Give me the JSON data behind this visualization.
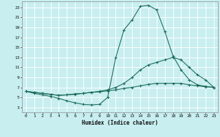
{
  "title": "",
  "xlabel": "Humidex (Indice chaleur)",
  "bg_color": "#c8eef0",
  "grid_color": "#ffffff",
  "line_color": "#1a6b5a",
  "xlim": [
    -0.5,
    23.5
  ],
  "ylim": [
    2.0,
    24.2
  ],
  "xticks": [
    0,
    1,
    2,
    3,
    4,
    5,
    6,
    7,
    8,
    9,
    10,
    11,
    12,
    13,
    14,
    15,
    16,
    17,
    18,
    19,
    20,
    21,
    22,
    23
  ],
  "yticks": [
    3,
    5,
    7,
    9,
    11,
    13,
    15,
    17,
    19,
    21,
    23
  ],
  "curve1_x": [
    0,
    1,
    2,
    3,
    4,
    5,
    6,
    7,
    8,
    9,
    10,
    11,
    12,
    13,
    14,
    15,
    16,
    17,
    18,
    19,
    20,
    21,
    22,
    23
  ],
  "curve1_y": [
    6.2,
    5.8,
    5.5,
    5.2,
    4.8,
    4.3,
    3.9,
    3.6,
    3.5,
    3.6,
    5.0,
    13.0,
    18.5,
    20.5,
    23.2,
    23.4,
    22.5,
    18.2,
    13.3,
    10.5,
    8.5,
    7.5,
    7.2,
    7.0
  ],
  "curve2_x": [
    0,
    1,
    2,
    3,
    4,
    5,
    6,
    7,
    8,
    9,
    10,
    11,
    12,
    13,
    14,
    15,
    16,
    17,
    18,
    19,
    20,
    21,
    22,
    23
  ],
  "curve2_y": [
    6.2,
    6.0,
    5.8,
    5.6,
    5.4,
    5.5,
    5.6,
    5.8,
    6.0,
    6.2,
    6.5,
    7.0,
    7.8,
    9.0,
    10.5,
    11.5,
    12.0,
    12.5,
    13.0,
    12.5,
    11.0,
    9.5,
    8.5,
    7.0
  ],
  "curve3_x": [
    0,
    1,
    2,
    3,
    4,
    5,
    6,
    7,
    8,
    9,
    10,
    11,
    12,
    13,
    14,
    15,
    16,
    17,
    18,
    19,
    20,
    21,
    22,
    23
  ],
  "curve3_y": [
    6.2,
    6.0,
    5.8,
    5.6,
    5.4,
    5.5,
    5.7,
    5.8,
    6.0,
    6.1,
    6.3,
    6.5,
    6.8,
    7.0,
    7.3,
    7.6,
    7.8,
    7.8,
    7.8,
    7.8,
    7.5,
    7.3,
    7.1,
    7.0
  ]
}
